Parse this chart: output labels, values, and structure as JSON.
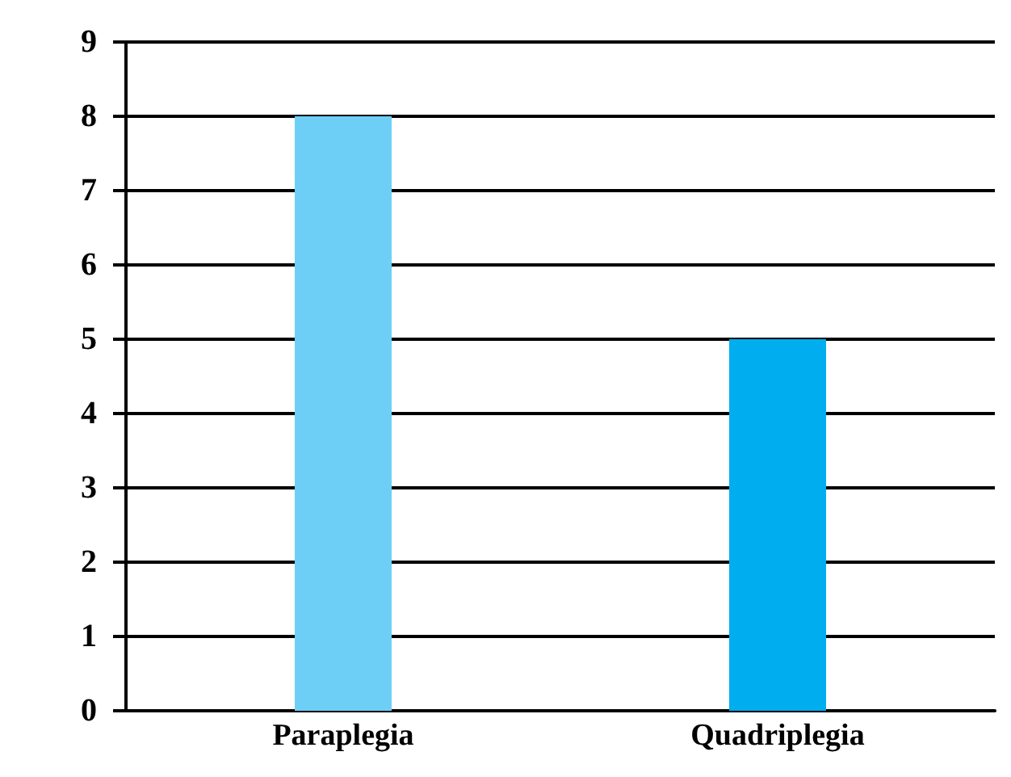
{
  "chart_data": {
    "type": "bar",
    "categories": [
      "Paraplegia",
      "Quadriplegia"
    ],
    "values": [
      8,
      5
    ],
    "colors": [
      "#6dcff6",
      "#00aeef"
    ],
    "ylim": [
      0,
      9
    ],
    "yticks": [
      0,
      1,
      2,
      3,
      4,
      5,
      6,
      7,
      8,
      9
    ],
    "grid": "y"
  }
}
